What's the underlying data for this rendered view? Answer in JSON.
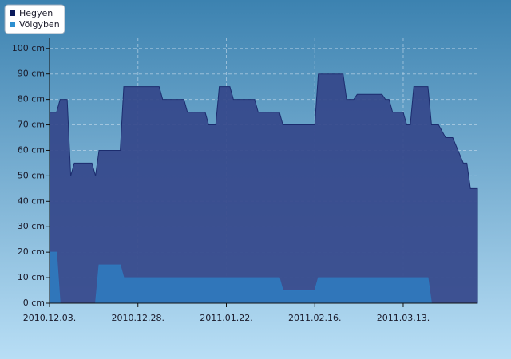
{
  "chart_data": {
    "type": "area",
    "legend": "upper left",
    "grid": true,
    "x": [
      "2010-12-03",
      "2010-12-05",
      "2010-12-06",
      "2010-12-08",
      "2010-12-09",
      "2010-12-10",
      "2010-12-15",
      "2010-12-16",
      "2010-12-17",
      "2010-12-23",
      "2010-12-24",
      "2011-01-03",
      "2011-01-04",
      "2011-01-10",
      "2011-01-11",
      "2011-01-16",
      "2011-01-17",
      "2011-01-19",
      "2011-01-20",
      "2011-01-23",
      "2011-01-24",
      "2011-01-30",
      "2011-01-31",
      "2011-02-06",
      "2011-02-07",
      "2011-02-16",
      "2011-02-17",
      "2011-02-24",
      "2011-02-25",
      "2011-02-27",
      "2011-02-28",
      "2011-03-07",
      "2011-03-08",
      "2011-03-09",
      "2011-03-10",
      "2011-03-13",
      "2011-03-14",
      "2011-03-15",
      "2011-03-16",
      "2011-03-20",
      "2011-03-21",
      "2011-03-23",
      "2011-03-25",
      "2011-03-27",
      "2011-03-30",
      "2011-03-31",
      "2011-04-01",
      "2011-04-03"
    ],
    "series": [
      {
        "name": "Hegyen",
        "color": "#34478a",
        "legend_color": "#0a1a5c",
        "values": [
          75,
          75,
          80,
          80,
          50,
          55,
          55,
          50,
          60,
          60,
          85,
          85,
          80,
          80,
          75,
          75,
          70,
          70,
          85,
          85,
          80,
          80,
          75,
          75,
          70,
          70,
          90,
          90,
          80,
          80,
          82,
          82,
          80,
          80,
          75,
          75,
          70,
          70,
          85,
          85,
          70,
          70,
          65,
          65,
          55,
          55,
          45,
          45
        ]
      },
      {
        "name": "Völgyben",
        "color": "#2f78bd",
        "legend_color": "#2d8fd0",
        "values": [
          20,
          20,
          0,
          0,
          0,
          0,
          0,
          0,
          15,
          15,
          10,
          10,
          10,
          10,
          10,
          10,
          10,
          10,
          10,
          10,
          10,
          10,
          10,
          10,
          5,
          5,
          10,
          10,
          10,
          10,
          10,
          10,
          10,
          10,
          10,
          10,
          10,
          10,
          10,
          10,
          0,
          0,
          0,
          0,
          0,
          0,
          0,
          0
        ]
      }
    ],
    "xlim": [
      "2010-12-03",
      "2011-04-03"
    ],
    "xticks": [
      {
        "value": "2010-12-03",
        "label": "2010.12.03."
      },
      {
        "value": "2010-12-28",
        "label": "2010.12.28."
      },
      {
        "value": "2011-01-22",
        "label": "2011.01.22."
      },
      {
        "value": "2011-02-16",
        "label": "2011.02.16."
      },
      {
        "value": "2011-03-13",
        "label": "2011.03.13."
      }
    ],
    "ylim": [
      0,
      104
    ],
    "yticks": [
      {
        "value": 0,
        "label": "0 cm"
      },
      {
        "value": 10,
        "label": "10 cm"
      },
      {
        "value": 20,
        "label": "20 cm"
      },
      {
        "value": 30,
        "label": "30 cm"
      },
      {
        "value": 40,
        "label": "40 cm"
      },
      {
        "value": 50,
        "label": "50 cm"
      },
      {
        "value": 60,
        "label": "60 cm"
      },
      {
        "value": 70,
        "label": "70 cm"
      },
      {
        "value": 80,
        "label": "80 cm"
      },
      {
        "value": 90,
        "label": "90 cm"
      },
      {
        "value": 100,
        "label": "100 cm"
      }
    ]
  }
}
